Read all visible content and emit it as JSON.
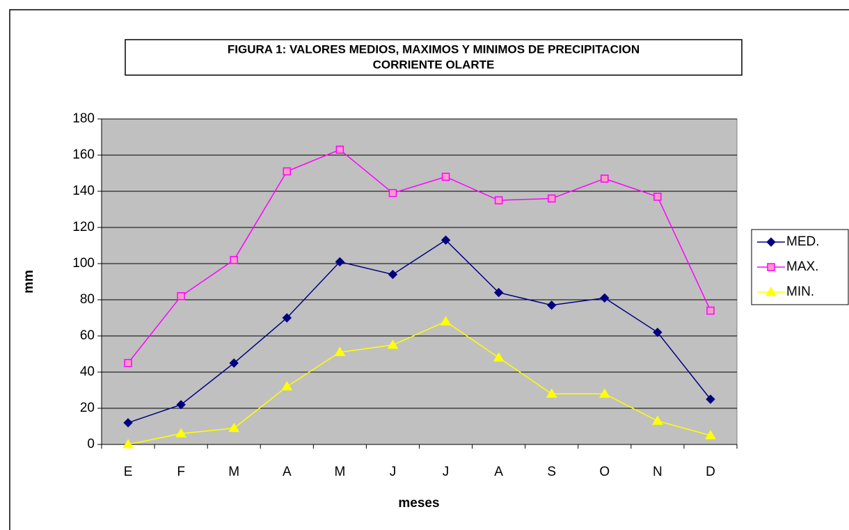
{
  "chart_data": {
    "type": "line",
    "title": "FIGURA 1:  VALORES MEDIOS, MAXIMOS Y MINIMOS DE PRECIPITACION",
    "subtitle": "CORRIENTE OLARTE",
    "x_label": "meses",
    "y_label": "mm",
    "categories": [
      "E",
      "F",
      "M",
      "A",
      "M",
      "J",
      "J",
      "A",
      "S",
      "O",
      "N",
      "D"
    ],
    "series": [
      {
        "name": "MED.",
        "color": "#000080",
        "marker": "diamond",
        "values": [
          12,
          22,
          45,
          70,
          101,
          94,
          113,
          84,
          77,
          81,
          62,
          25
        ]
      },
      {
        "name": "MAX.",
        "color": "#FF00FF",
        "marker": "square",
        "values": [
          45,
          82,
          102,
          151,
          163,
          139,
          148,
          135,
          136,
          147,
          137,
          74
        ]
      },
      {
        "name": "MIN.",
        "color": "#FFFF00",
        "marker": "triangle",
        "values": [
          0,
          6,
          9,
          32,
          51,
          55,
          68,
          48,
          28,
          28,
          13,
          5
        ]
      }
    ],
    "ylim": [
      0,
      180
    ],
    "yticks": [
      0,
      20,
      40,
      60,
      80,
      100,
      120,
      140,
      160,
      180
    ],
    "grid": true,
    "legend": "right"
  }
}
